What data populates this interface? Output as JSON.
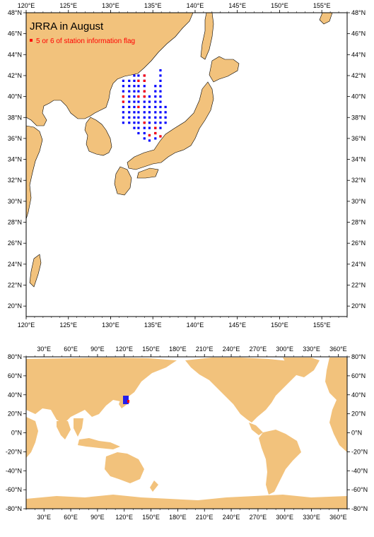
{
  "regional_map": {
    "title": "JRRA in August",
    "legend_label": "5 or 6 of station information flag",
    "lon_ticks": [
      "120°E",
      "125°E",
      "130°E",
      "135°E",
      "140°E",
      "145°E",
      "150°E",
      "155°E"
    ],
    "lat_ticks": [
      "20°N",
      "22°N",
      "24°N",
      "26°N",
      "28°N",
      "30°N",
      "32°N",
      "34°N",
      "36°N",
      "38°N",
      "40°N",
      "42°N",
      "44°N",
      "46°N",
      "48°N"
    ],
    "lon_range": [
      120,
      158
    ],
    "lat_range": [
      19,
      48
    ],
    "flagged_color": "#ff0000",
    "station_color": "#0000ff",
    "land_color": "#f2c27c"
  },
  "global_map": {
    "lon_ticks": [
      "30°E",
      "60°E",
      "90°E",
      "120°E",
      "150°E",
      "180°E",
      "210°E",
      "240°E",
      "270°E",
      "300°E",
      "330°E",
      "360°E"
    ],
    "lat_ticks": [
      "-80°N",
      "-60°N",
      "-40°N",
      "-20°N",
      "0°N",
      "20°N",
      "40°N",
      "60°N",
      "80°N"
    ],
    "lon_range": [
      10,
      370
    ],
    "lat_range": [
      -80,
      80
    ],
    "land_color": "#f2c27c"
  }
}
